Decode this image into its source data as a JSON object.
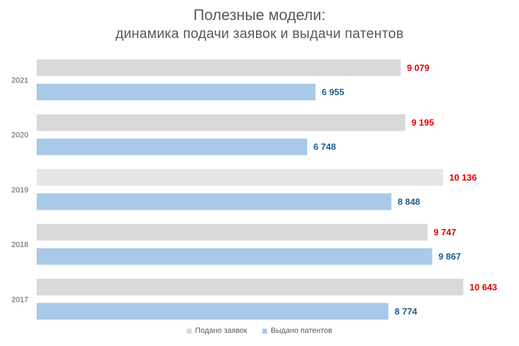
{
  "colors": {
    "applied": "#d9d9d9",
    "applied_2019": "#e6e6e6",
    "granted": "#a9c9e8",
    "applied_label": "#e00000",
    "granted_label": "#1f5c8a",
    "text": "#595959"
  },
  "chart_data": {
    "type": "bar",
    "orientation": "horizontal",
    "title": "Полезные модели:",
    "subtitle": "динамика подачи заявок и выдачи патентов",
    "categories": [
      "2021",
      "2020",
      "2019",
      "2018",
      "2017"
    ],
    "series": [
      {
        "name": "Подано заявок",
        "values": [
          9079,
          9195,
          10136,
          9747,
          10643
        ],
        "labels": [
          "9 079",
          "9 195",
          "10 136",
          "9 747",
          "10 643"
        ]
      },
      {
        "name": "Выдано патентов",
        "values": [
          6955,
          6748,
          8848,
          9867,
          8774
        ],
        "labels": [
          "6 955",
          "6 748",
          "8 848",
          "9 867",
          "8 774"
        ]
      }
    ],
    "xlim": [
      0,
      11600
    ],
    "grid": false,
    "legend": "bottom"
  }
}
